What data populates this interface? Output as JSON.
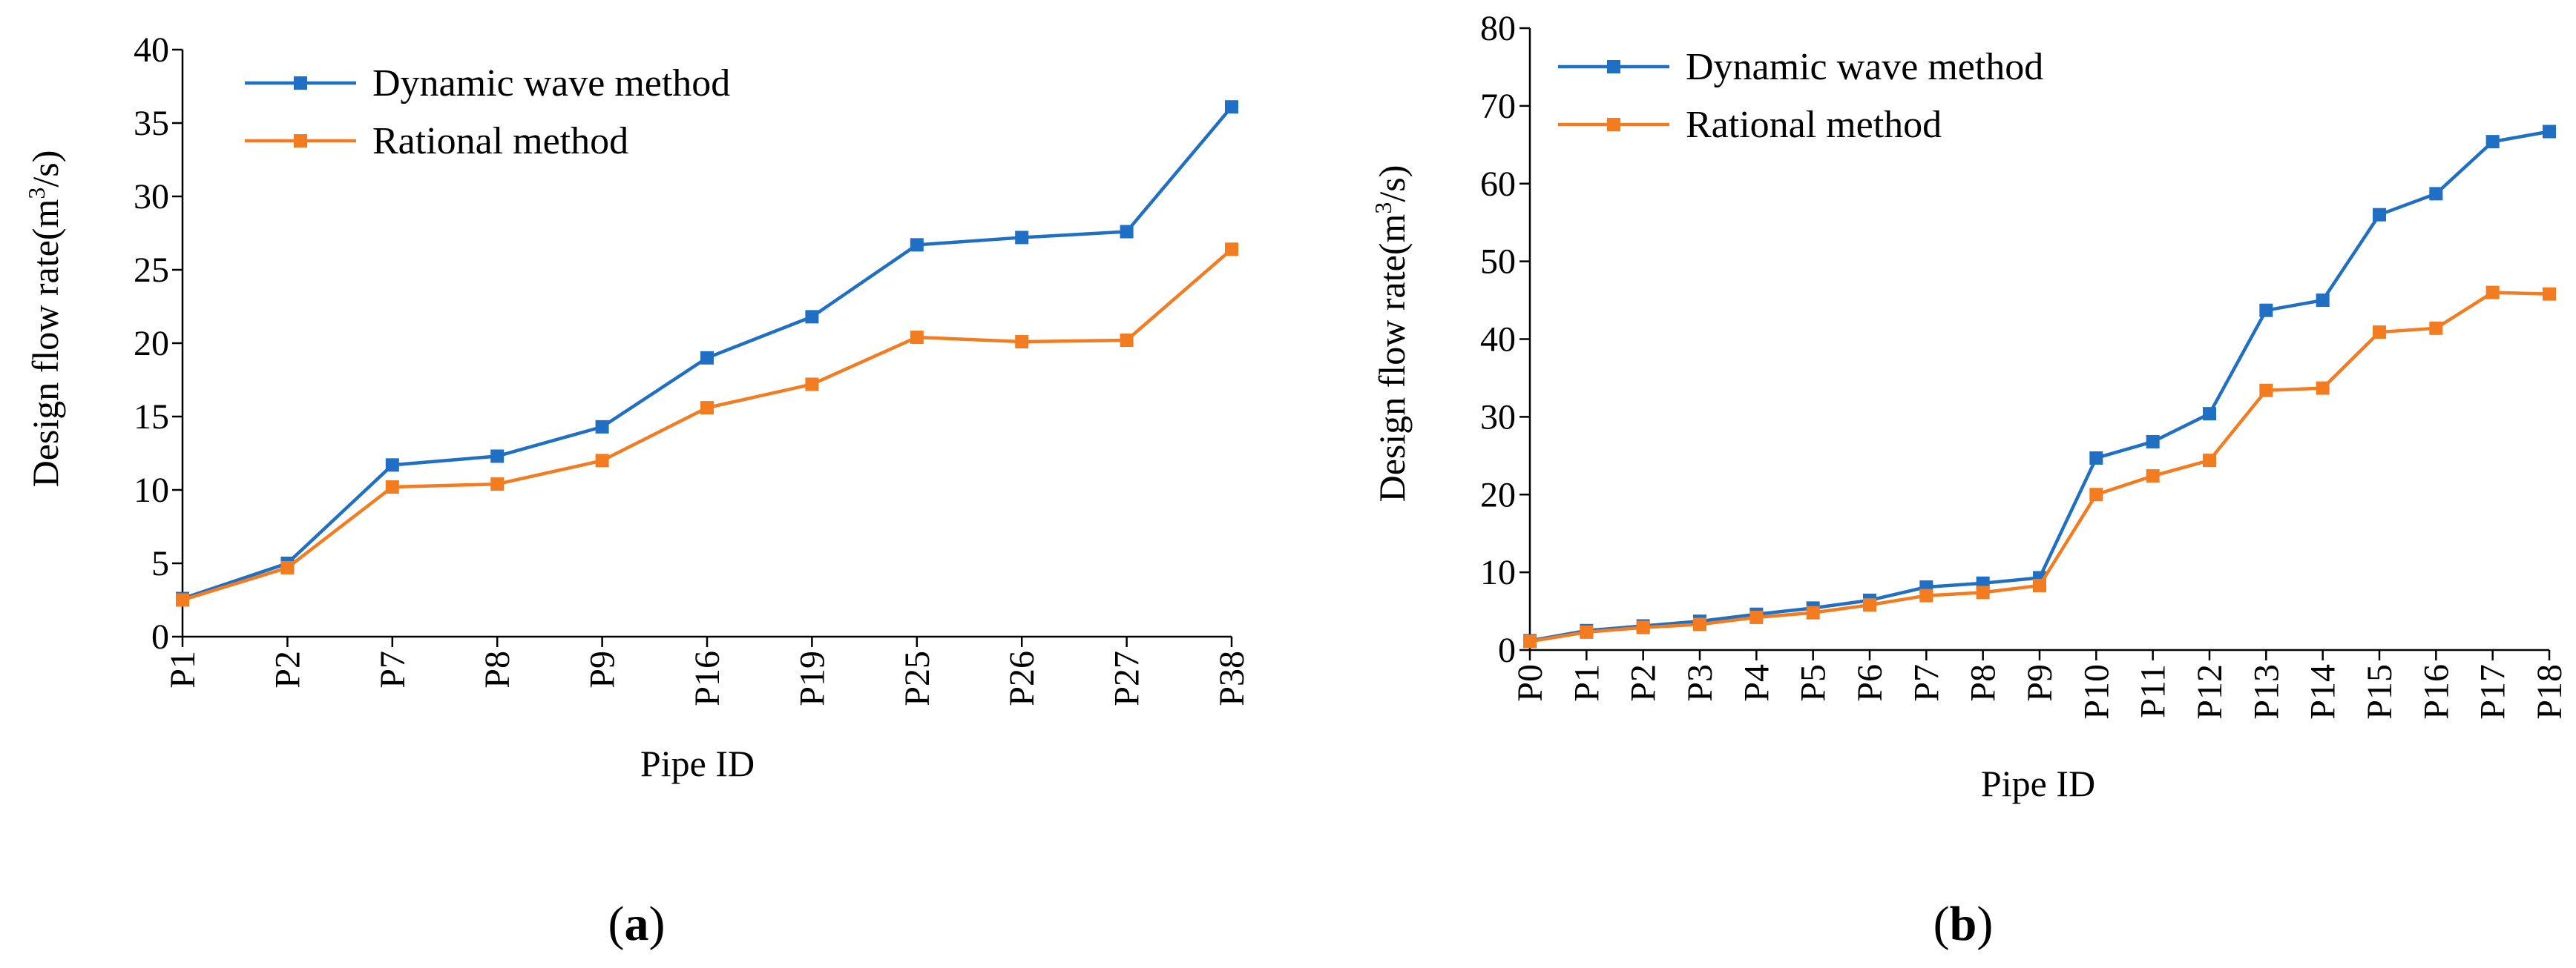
{
  "chart_data": [
    {
      "type": "line",
      "panel_label": "(a)",
      "xlabel": "Pipe ID",
      "ylabel": "Design flow rate(m³/s)",
      "ylim": [
        0,
        40
      ],
      "yticks": [
        0,
        5,
        10,
        15,
        20,
        25,
        30,
        35,
        40
      ],
      "grid": false,
      "legend_position": "top-left",
      "categories": [
        "P1",
        "P2",
        "P7",
        "P8",
        "P9",
        "P16",
        "P19",
        "P25",
        "P26",
        "P27",
        "P38"
      ],
      "series": [
        {
          "name": "Dynamic wave method",
          "color": "#1f6fc5",
          "values": [
            2.6,
            5.0,
            11.7,
            12.3,
            14.3,
            19.0,
            21.8,
            26.7,
            27.2,
            27.6,
            36.1
          ]
        },
        {
          "name": "Rational method",
          "color": "#f47c20",
          "values": [
            2.5,
            4.7,
            10.2,
            10.4,
            12.0,
            15.6,
            17.2,
            20.4,
            20.1,
            20.2,
            26.4
          ]
        }
      ]
    },
    {
      "type": "line",
      "panel_label": "(b)",
      "xlabel": "Pipe ID",
      "ylabel": "Design flow rate(m³/s)",
      "ylim": [
        0,
        80
      ],
      "yticks": [
        0,
        10,
        20,
        30,
        40,
        50,
        60,
        70,
        80
      ],
      "grid": false,
      "legend_position": "top-left",
      "categories": [
        "P0",
        "P1",
        "P2",
        "P3",
        "P4",
        "P5",
        "P6",
        "P7",
        "P8",
        "P9",
        "P10",
        "P11",
        "P12",
        "P13",
        "P14",
        "P15",
        "P16",
        "P17",
        "P18"
      ],
      "series": [
        {
          "name": "Dynamic wave method",
          "color": "#1f6fc5",
          "values": [
            1.2,
            2.5,
            3.1,
            3.7,
            4.6,
            5.4,
            6.4,
            8.1,
            8.6,
            9.3,
            24.7,
            26.8,
            30.4,
            43.7,
            45.0,
            56.0,
            58.7,
            65.4,
            66.7
          ]
        },
        {
          "name": "Rational method",
          "color": "#f47c20",
          "values": [
            1.1,
            2.3,
            2.9,
            3.3,
            4.2,
            4.8,
            5.8,
            7.0,
            7.4,
            8.3,
            20.0,
            22.4,
            24.4,
            33.4,
            33.7,
            40.9,
            41.4,
            46.0,
            45.8
          ]
        }
      ]
    }
  ]
}
